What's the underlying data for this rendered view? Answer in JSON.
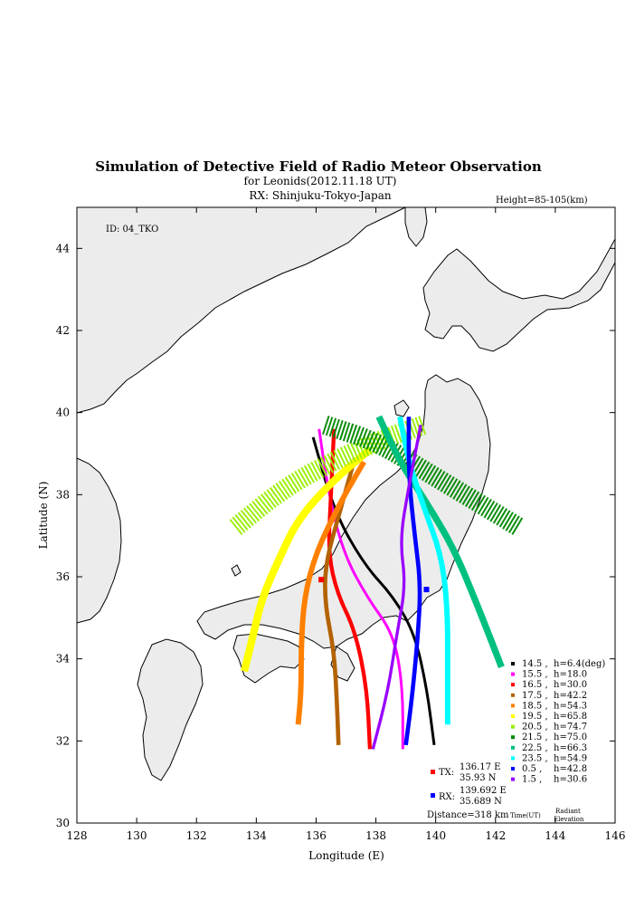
{
  "chart_data": {
    "type": "map",
    "title": "Simulation of Detective Field of Radio Meteor Observation",
    "subtitle_shower": "for Leonids(2012.11.18 UT)",
    "subtitle_rx": "RX: Shinjuku-Tokyo-Japan",
    "height_label": "Height=85-105(km)",
    "id_label": "ID: 04_TKO",
    "xlabel": "Longitude (E)",
    "ylabel": "Latitude (N)",
    "xlim": [
      128,
      146
    ],
    "ylim": [
      30,
      45
    ],
    "xticks": [
      "128",
      "130",
      "132",
      "134",
      "136",
      "138",
      "140",
      "142",
      "144",
      "146"
    ],
    "yticks": [
      "30",
      "32",
      "34",
      "36",
      "38",
      "40",
      "42",
      "44"
    ],
    "tx": {
      "label": "TX:",
      "lon_text": "136.17 E",
      "lat_text": "35.93 N",
      "lon": 136.17,
      "lat": 35.93,
      "color": "#ff0000"
    },
    "rx": {
      "label": "RX:",
      "lon_text": "139.692 E",
      "lat_text": "35.689 N",
      "lon": 139.692,
      "lat": 35.689,
      "color": "#0000ff"
    },
    "distance": "Distance=318 km",
    "legend_footer": {
      "time": "Time(UT)",
      "radiant": "Radiant",
      "elevation": "Elevation"
    },
    "series": [
      {
        "time": "14.5",
        "elev": "h=6.4(deg)",
        "color": "#000000",
        "w": 0.06,
        "path": [
          [
            135.9,
            39.4
          ],
          [
            136.6,
            37.6
          ],
          [
            137.6,
            36.3
          ],
          [
            138.6,
            35.5
          ],
          [
            139.3,
            34.6
          ],
          [
            139.7,
            33.3
          ],
          [
            139.95,
            31.9
          ]
        ]
      },
      {
        "time": "15.5",
        "elev": "h=18.0",
        "color": "#ff00ff",
        "w": 0.09,
        "path": [
          [
            136.1,
            39.6
          ],
          [
            136.4,
            38.1
          ],
          [
            136.9,
            36.6
          ],
          [
            137.7,
            35.5
          ],
          [
            138.6,
            34.6
          ],
          [
            138.9,
            33.3
          ],
          [
            138.9,
            31.8
          ]
        ]
      },
      {
        "time": "16.5",
        "elev": "h=30.0",
        "color": "#ff0000",
        "w": 0.13,
        "path": [
          [
            136.6,
            39.6
          ],
          [
            136.5,
            38.0
          ],
          [
            136.4,
            36.6
          ],
          [
            136.7,
            35.6
          ],
          [
            137.3,
            34.7
          ],
          [
            137.7,
            33.3
          ],
          [
            137.8,
            31.8
          ]
        ]
      },
      {
        "time": "17.5",
        "elev": "h=42.2",
        "color": "#b36200",
        "w": 0.14,
        "path": [
          [
            137.3,
            38.9
          ],
          [
            136.8,
            37.6
          ],
          [
            136.3,
            36.3
          ],
          [
            136.3,
            35.3
          ],
          [
            136.6,
            34.2
          ],
          [
            136.7,
            32.9
          ],
          [
            136.75,
            31.9
          ]
        ]
      },
      {
        "time": "18.5",
        "elev": "h=54.3",
        "color": "#ff8000",
        "w": 0.18,
        "path": [
          [
            137.6,
            38.8
          ],
          [
            136.8,
            37.8
          ],
          [
            136.0,
            36.6
          ],
          [
            135.6,
            35.5
          ],
          [
            135.5,
            34.3
          ],
          [
            135.5,
            33.2
          ],
          [
            135.4,
            32.4
          ]
        ]
      },
      {
        "time": "19.5",
        "elev": "h=65.8",
        "color": "#ffff00",
        "w": 0.25,
        "path": [
          [
            137.8,
            39.1
          ],
          [
            136.5,
            38.3
          ],
          [
            135.4,
            37.4
          ],
          [
            134.8,
            36.5
          ],
          [
            134.2,
            35.5
          ],
          [
            133.9,
            34.6
          ],
          [
            133.6,
            33.7
          ]
        ]
      },
      {
        "time": "20.5",
        "elev": "h=74.7",
        "color": "#99ee00",
        "w": 0.65,
        "path": [
          [
            133.3,
            37.2
          ],
          [
            135.0,
            38.2
          ],
          [
            136.8,
            38.9
          ],
          [
            138.4,
            39.4
          ],
          [
            139.6,
            39.7
          ]
        ]
      },
      {
        "time": "21.5",
        "elev": "h=75.0",
        "color": "#008800",
        "w": 0.65,
        "path": [
          [
            136.3,
            39.7
          ],
          [
            138.0,
            39.3
          ],
          [
            139.6,
            38.6
          ],
          [
            141.2,
            37.9
          ],
          [
            142.8,
            37.2
          ]
        ]
      },
      {
        "time": "22.5",
        "elev": "h=66.3",
        "color": "#00c080",
        "w": 0.22,
        "path": [
          [
            138.1,
            39.9
          ],
          [
            138.8,
            38.8
          ],
          [
            139.7,
            37.8
          ],
          [
            140.6,
            36.7
          ],
          [
            141.4,
            35.3
          ],
          [
            142.2,
            33.8
          ]
        ]
      },
      {
        "time": "23.5",
        "elev": "h=54.9",
        "color": "#00ffff",
        "w": 0.18,
        "path": [
          [
            138.8,
            39.9
          ],
          [
            139.1,
            38.8
          ],
          [
            139.6,
            37.7
          ],
          [
            140.2,
            36.5
          ],
          [
            140.4,
            35.2
          ],
          [
            140.4,
            33.6
          ],
          [
            140.4,
            32.4
          ]
        ]
      },
      {
        "time": "0.5",
        "elev": "h=42.8",
        "color": "#0000ff",
        "w": 0.14,
        "path": [
          [
            139.1,
            39.9
          ],
          [
            139.1,
            38.4
          ],
          [
            139.3,
            37.0
          ],
          [
            139.5,
            35.8
          ],
          [
            139.4,
            34.5
          ],
          [
            139.2,
            33.0
          ],
          [
            139.0,
            31.9
          ]
        ]
      },
      {
        "time": "1.5",
        "elev": "h=30.6",
        "color": "#9900ff",
        "w": 0.1,
        "path": [
          [
            139.5,
            39.7
          ],
          [
            139.1,
            38.2
          ],
          [
            138.8,
            36.9
          ],
          [
            139.0,
            35.8
          ],
          [
            138.7,
            34.6
          ],
          [
            138.4,
            33.2
          ],
          [
            137.9,
            31.8
          ]
        ]
      }
    ]
  }
}
